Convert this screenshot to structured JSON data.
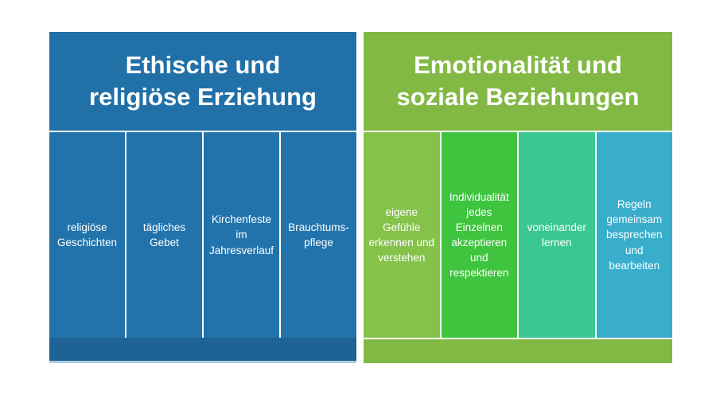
{
  "page": {
    "background_color": "#ffffff"
  },
  "panels": [
    {
      "id": "ethische-religioese-erziehung",
      "title": "Ethische und\nreligiöse Erziehung",
      "header_color": "#2170a8",
      "footer_color": "#1e6395",
      "text_color": "#ffffff",
      "columns": [
        {
          "label": "religiöse\nGeschichten",
          "color": "#2273ac"
        },
        {
          "label": "tägliches\nGebet",
          "color": "#2273ac"
        },
        {
          "label": "Kirchenfeste\nim\nJahresverlauf",
          "color": "#2273ac"
        },
        {
          "label": "Brauchtums-\npflege",
          "color": "#2273ac"
        }
      ]
    },
    {
      "id": "emotionalitaet-soziale-beziehungen",
      "title": "Emotionalität und\nsoziale Beziehungen",
      "header_color": "#82b944",
      "footer_color": "#82b944",
      "text_color": "#ffffff",
      "columns": [
        {
          "label": "eigene\nGefühle\nerkennen und\nverstehen",
          "color": "#85c24a"
        },
        {
          "label": "Individualität\njedes\nEinzelnen\nakzeptieren\nund\nrespektieren",
          "color": "#3ec43e"
        },
        {
          "label": "voneinander\nlernen",
          "color": "#3bc792"
        },
        {
          "label": "Regeln\ngemeinsam\nbesprechen\nund\nbearbeiten",
          "color": "#38aecc"
        }
      ]
    }
  ]
}
